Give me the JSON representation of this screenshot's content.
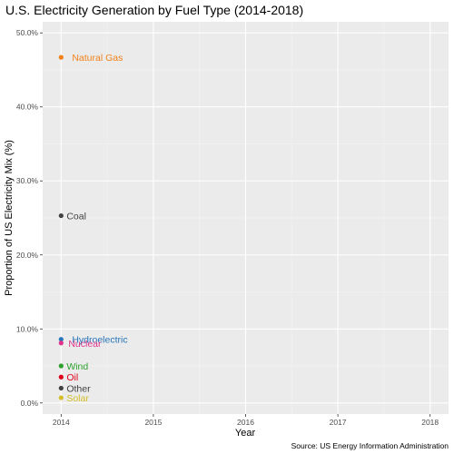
{
  "chart_data": {
    "type": "scatter",
    "title": "U.S. Electricity Generation by Fuel Type (2014-2018)",
    "xlabel": "Year",
    "ylabel": "Proportion of US Electricity Mix (%)",
    "caption": "Source: US Energy Information Administration",
    "xlim": [
      2013.8,
      2018.2
    ],
    "ylim": [
      -1.5,
      51.5
    ],
    "x_ticks": [
      2014,
      2015,
      2016,
      2017,
      2018
    ],
    "x_tick_labels": [
      "2014",
      "2015",
      "2016",
      "2017",
      "2018"
    ],
    "y_ticks": [
      0,
      10,
      20,
      30,
      40,
      50
    ],
    "y_tick_labels": [
      "0.0%",
      "10.0%",
      "20.0%",
      "30.0%",
      "40.0%",
      "50.0%"
    ],
    "grid": true,
    "legend": "none",
    "series": [
      {
        "name": "Natural Gas",
        "color": "#f0811a",
        "x": [
          2014
        ],
        "y": [
          46.7
        ]
      },
      {
        "name": "Coal",
        "color": "#404040",
        "x": [
          2014
        ],
        "y": [
          25.3
        ]
      },
      {
        "name": "Hydroelectric",
        "color": "#2774b8",
        "x": [
          2014
        ],
        "y": [
          8.6
        ]
      },
      {
        "name": "Nuclear",
        "color": "#e0338b",
        "x": [
          2014
        ],
        "y": [
          8.1
        ]
      },
      {
        "name": "Wind",
        "color": "#2ca02c",
        "x": [
          2014
        ],
        "y": [
          5.0
        ]
      },
      {
        "name": "Oil",
        "color": "#e0001a",
        "x": [
          2014
        ],
        "y": [
          3.5
        ]
      },
      {
        "name": "Other",
        "color": "#404040",
        "x": [
          2014
        ],
        "y": [
          2.0
        ]
      },
      {
        "name": "Solar",
        "color": "#d4be28",
        "x": [
          2014
        ],
        "y": [
          0.7
        ]
      }
    ]
  }
}
